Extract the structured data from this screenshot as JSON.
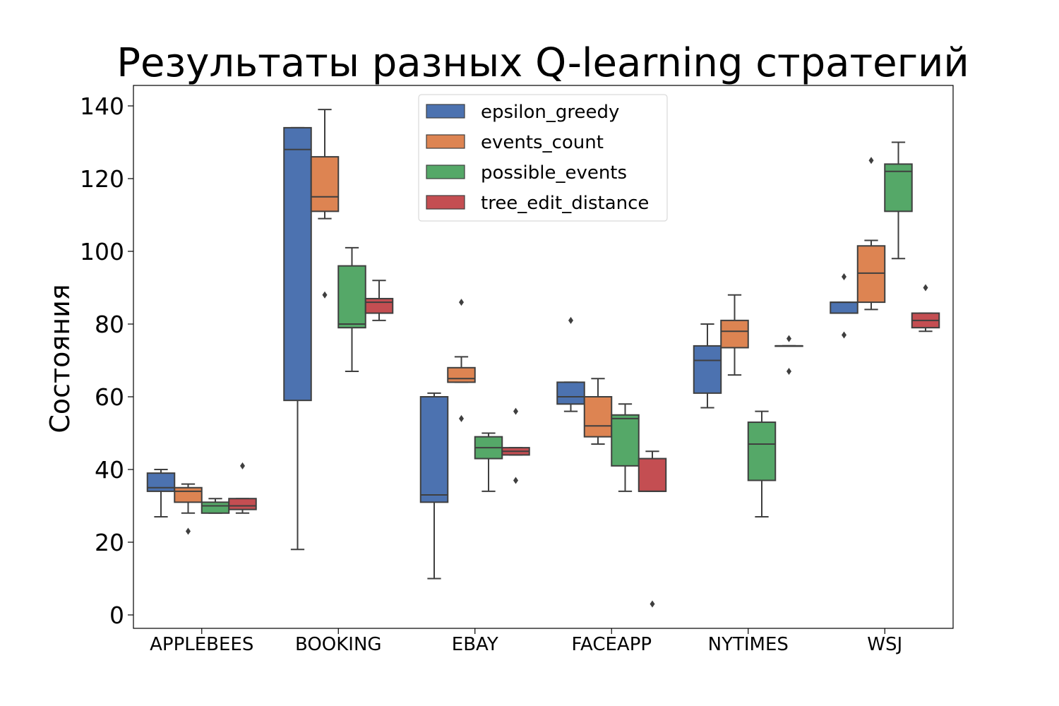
{
  "chart_data": {
    "type": "box",
    "title": "Результаты разных Q-learning стратегий",
    "xlabel": "",
    "ylabel": "Состояния",
    "ylim": [
      -3.5,
      146
    ],
    "yticks": [
      0,
      20,
      40,
      60,
      80,
      100,
      120,
      140
    ],
    "grid": false,
    "legend_placement": "top-center",
    "categories": [
      "APPLEBEES",
      "BOOKING",
      "EBAY",
      "FACEAPP",
      "NYTIMES",
      "WSJ"
    ],
    "series": [
      {
        "name": "epsilon_greedy",
        "color": "#4c72b0",
        "boxes": [
          {
            "whislo": 27,
            "q1": 34,
            "med": 35,
            "q3": 39,
            "whishi": 40,
            "fliers": []
          },
          {
            "whislo": 18,
            "q1": 59,
            "med": 128,
            "q3": 134,
            "whishi": 134,
            "fliers": []
          },
          {
            "whislo": 10,
            "q1": 31,
            "med": 33,
            "q3": 60,
            "whishi": 61,
            "fliers": []
          },
          {
            "whislo": 56,
            "q1": 58,
            "med": 60,
            "q3": 64,
            "whishi": 64,
            "fliers": [
              81
            ]
          },
          {
            "whislo": 57,
            "q1": 61,
            "med": 70,
            "q3": 74,
            "whishi": 80,
            "fliers": []
          },
          {
            "whislo": 83,
            "q1": 83,
            "med": 86,
            "q3": 86,
            "whishi": 86,
            "fliers": [
              93,
              77
            ]
          }
        ]
      },
      {
        "name": "events_count",
        "color": "#dd8452",
        "boxes": [
          {
            "whislo": 28,
            "q1": 31,
            "med": 34,
            "q3": 35,
            "whishi": 36,
            "fliers": [
              23
            ]
          },
          {
            "whislo": 109,
            "q1": 111,
            "med": 115,
            "q3": 126,
            "whishi": 139,
            "fliers": [
              88
            ]
          },
          {
            "whislo": 64,
            "q1": 64,
            "med": 65,
            "q3": 68,
            "whishi": 71,
            "fliers": [
              86,
              54
            ]
          },
          {
            "whislo": 47,
            "q1": 49,
            "med": 52,
            "q3": 60,
            "whishi": 65,
            "fliers": []
          },
          {
            "whislo": 66,
            "q1": 73.5,
            "med": 78,
            "q3": 81,
            "whishi": 88,
            "fliers": []
          },
          {
            "whislo": 84,
            "q1": 86,
            "med": 94,
            "q3": 101.5,
            "whishi": 103,
            "fliers": [
              125
            ]
          }
        ]
      },
      {
        "name": "possible_events",
        "color": "#55a868",
        "boxes": [
          {
            "whislo": 28,
            "q1": 28,
            "med": 30,
            "q3": 31,
            "whishi": 32,
            "fliers": []
          },
          {
            "whislo": 67,
            "q1": 79,
            "med": 80,
            "q3": 96,
            "whishi": 101,
            "fliers": []
          },
          {
            "whislo": 34,
            "q1": 43,
            "med": 46,
            "q3": 49,
            "whishi": 50,
            "fliers": []
          },
          {
            "whislo": 34,
            "q1": 41,
            "med": 54,
            "q3": 55,
            "whishi": 58,
            "fliers": []
          },
          {
            "whislo": 27,
            "q1": 37,
            "med": 47,
            "q3": 53,
            "whishi": 56,
            "fliers": []
          },
          {
            "whislo": 98,
            "q1": 111,
            "med": 122,
            "q3": 124,
            "whishi": 130,
            "fliers": []
          }
        ]
      },
      {
        "name": "tree_edit_distance",
        "color": "#c44e52",
        "boxes": [
          {
            "whislo": 28,
            "q1": 29,
            "med": 30,
            "q3": 32,
            "whishi": 32,
            "fliers": [
              41
            ]
          },
          {
            "whislo": 81,
            "q1": 83,
            "med": 86,
            "q3": 87,
            "whishi": 92,
            "fliers": []
          },
          {
            "whislo": 44,
            "q1": 44,
            "med": 45,
            "q3": 46,
            "whishi": 46,
            "fliers": [
              56,
              37
            ]
          },
          {
            "whislo": 34,
            "q1": 34,
            "med": 34,
            "q3": 43,
            "whishi": 45,
            "fliers": [
              3
            ]
          },
          {
            "whislo": 74,
            "q1": 74,
            "med": 74,
            "q3": 74,
            "whishi": 74,
            "fliers": [
              76,
              67
            ]
          },
          {
            "whislo": 78,
            "q1": 79,
            "med": 81,
            "q3": 83,
            "whishi": 83,
            "fliers": [
              90
            ]
          }
        ]
      }
    ]
  }
}
